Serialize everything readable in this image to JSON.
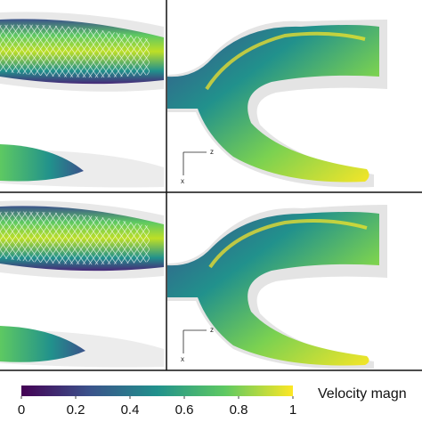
{
  "axes": {
    "z": "z",
    "x": "x"
  },
  "colorbar": {
    "title": "Velocity magn",
    "ticks": [
      "0",
      "0.2",
      "0.4",
      "0.6",
      "0.8",
      "1"
    ],
    "tick_values": [
      0,
      0.2,
      0.4,
      0.6,
      0.8,
      1
    ],
    "range": [
      0,
      1
    ],
    "colormap": "viridis",
    "colors": [
      "#440154",
      "#3b528b",
      "#21918c",
      "#5ec962",
      "#fde725"
    ]
  },
  "panels": [
    {
      "row": 1,
      "col": 1,
      "view": "straight-vessel-with-stent"
    },
    {
      "row": 1,
      "col": 2,
      "view": "bifurcation"
    },
    {
      "row": 2,
      "col": 1,
      "view": "straight-vessel-with-stent"
    },
    {
      "row": 2,
      "col": 2,
      "view": "bifurcation"
    }
  ]
}
